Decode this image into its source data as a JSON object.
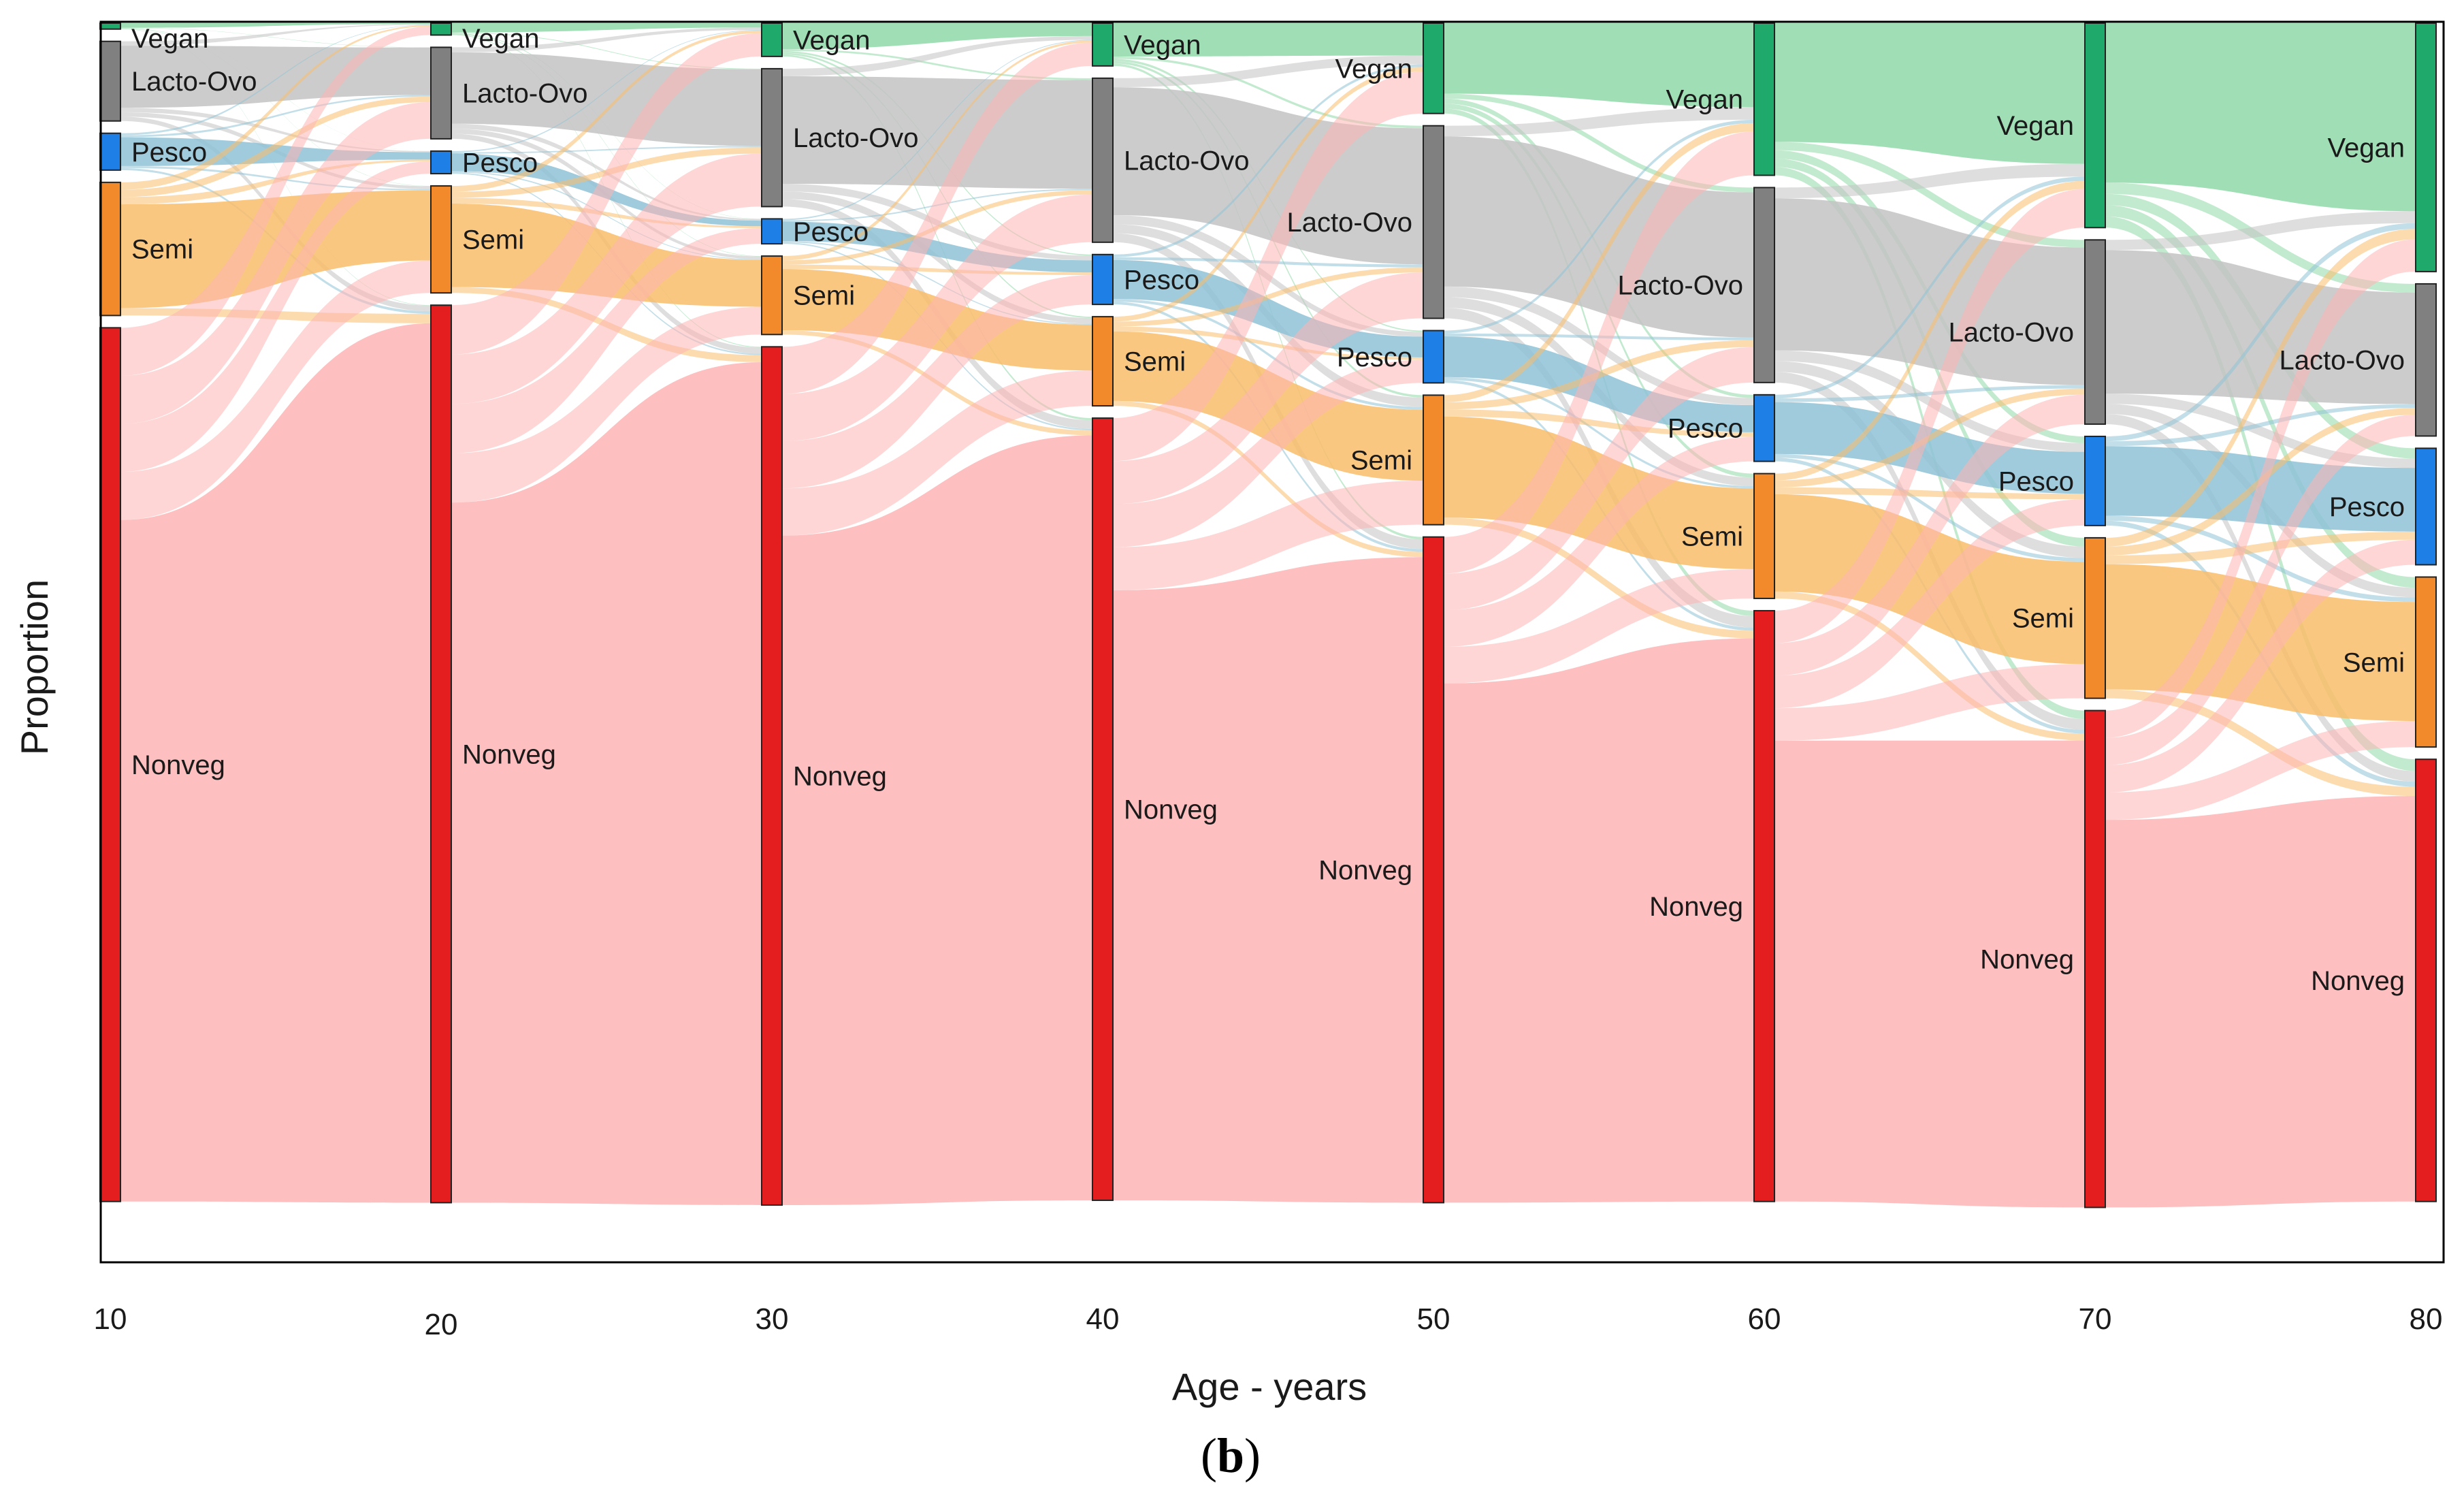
{
  "chart_data": {
    "type": "sankey",
    "title": "",
    "xlabel": "Age - years",
    "ylabel": "Proportion",
    "panel_label": "(b)",
    "panel_letter": "b",
    "x": [
      10,
      20,
      30,
      40,
      50,
      60,
      70,
      80
    ],
    "categories": [
      "Vegan",
      "Lacto-Ovo",
      "Pesco",
      "Semi",
      "Nonveg"
    ],
    "colors": {
      "Vegan": "#1faa6b",
      "Lacto-Ovo": "#808080",
      "Pesco": "#1e7fe6",
      "Semi": "#f2892a",
      "Nonveg": "#e41e1e"
    },
    "flow_colors": {
      "Vegan": "#8fd9a8",
      "Lacto-Ovo": "#c3c3c3",
      "Pesco": "#8fc2d6",
      "Semi": "#f9bd6b",
      "Nonveg": "#fdb4b4"
    },
    "stages": [
      {
        "age": 10,
        "Vegan": 0.005,
        "Lacto-Ovo": 0.067,
        "Pesco": 0.031,
        "Semi": 0.112,
        "Nonveg": 0.735
      },
      {
        "age": 20,
        "Vegan": 0.01,
        "Lacto-Ovo": 0.077,
        "Pesco": 0.019,
        "Semi": 0.09,
        "Nonveg": 0.755
      },
      {
        "age": 30,
        "Vegan": 0.028,
        "Lacto-Ovo": 0.116,
        "Pesco": 0.021,
        "Semi": 0.066,
        "Nonveg": 0.722
      },
      {
        "age": 40,
        "Vegan": 0.036,
        "Lacto-Ovo": 0.138,
        "Pesco": 0.042,
        "Semi": 0.075,
        "Nonveg": 0.658
      },
      {
        "age": 50,
        "Vegan": 0.076,
        "Lacto-Ovo": 0.162,
        "Pesco": 0.044,
        "Semi": 0.109,
        "Nonveg": 0.56
      },
      {
        "age": 60,
        "Vegan": 0.128,
        "Lacto-Ovo": 0.164,
        "Pesco": 0.056,
        "Semi": 0.105,
        "Nonveg": 0.497
      },
      {
        "age": 70,
        "Vegan": 0.172,
        "Lacto-Ovo": 0.155,
        "Pesco": 0.075,
        "Semi": 0.135,
        "Nonveg": 0.418
      },
      {
        "age": 80,
        "Vegan": 0.209,
        "Lacto-Ovo": 0.128,
        "Pesco": 0.098,
        "Semi": 0.143,
        "Nonveg": 0.372
      }
    ]
  }
}
